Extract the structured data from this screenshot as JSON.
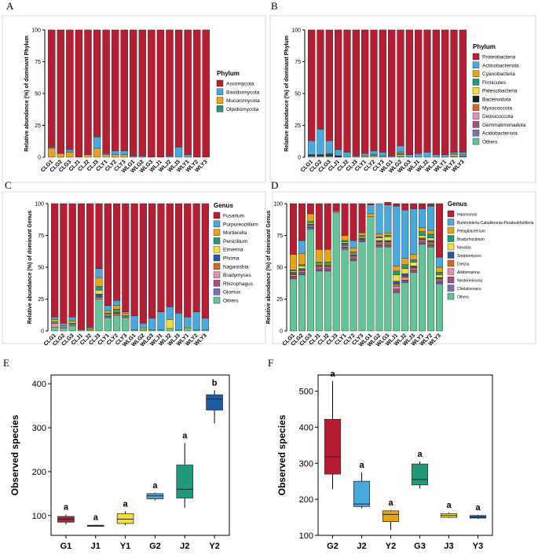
{
  "panels": [
    {
      "id": "A",
      "label": "A",
      "type": "stacked-bar",
      "ylabel": "Relative abundance (%) of dominant Phylum",
      "yticks": [
        "0",
        "25",
        "50",
        "75",
        "100"
      ],
      "legend_title": "Phylum",
      "categories": [
        "CLG1",
        "CLG2",
        "CLG3",
        "CLJ1",
        "CLJ2",
        "CLJ3",
        "CLY1",
        "CLY2",
        "CLY3",
        "WLG1",
        "WLG2",
        "WLG3",
        "WLJ1",
        "WLJ2",
        "WLJ3",
        "WLY1",
        "WLY2",
        "WLY3"
      ],
      "series": [
        {
          "name": "Olpidiomycota",
          "color": "#1f9a7a",
          "values": [
            0,
            0,
            0,
            0,
            0,
            0,
            0,
            0,
            0,
            0,
            0,
            0,
            0,
            0,
            0,
            0,
            0,
            0
          ]
        },
        {
          "name": "Mucoromycota",
          "color": "#e8a417",
          "values": [
            7,
            3,
            4,
            0,
            2,
            7,
            2,
            2,
            2,
            0,
            0,
            0,
            0,
            0,
            0,
            0,
            0,
            0
          ]
        },
        {
          "name": "Basidiomycota",
          "color": "#48a9df",
          "values": [
            1,
            0,
            2,
            0,
            0,
            9,
            1,
            3,
            3,
            1,
            1,
            0,
            0,
            1,
            8,
            2,
            0,
            0
          ]
        },
        {
          "name": "Ascomycota",
          "color": "#b71e33",
          "values": [
            92,
            97,
            94,
            100,
            98,
            84,
            97,
            95,
            95,
            99,
            99,
            100,
            100,
            99,
            92,
            98,
            100,
            100
          ]
        }
      ]
    },
    {
      "id": "B",
      "label": "B",
      "type": "stacked-bar",
      "ylabel": "Relative abundance (%) of dominant Phylum",
      "yticks": [
        "0",
        "25",
        "50",
        "75",
        "100"
      ],
      "legend_title": "Phylum",
      "categories": [
        "CLG1",
        "CLG2",
        "CLG3",
        "CLJ1",
        "CLJ2",
        "CLJ3",
        "CLY1",
        "CLY2",
        "CLY3",
        "WLG1",
        "WLG2",
        "WLG3",
        "WLJ1",
        "WLJ2",
        "WLJ3",
        "WLY1",
        "WLY2",
        "WLY3"
      ],
      "series": [
        {
          "name": "Others",
          "color": "#63c497",
          "values": [
            1,
            1,
            1,
            0,
            0,
            0,
            0,
            0,
            1,
            0,
            1,
            0,
            0,
            0,
            0,
            0,
            1,
            0
          ]
        },
        {
          "name": "Acidobacteriota",
          "color": "#7c6fb4",
          "values": [
            0,
            0,
            0,
            0,
            0,
            0,
            0,
            0,
            0,
            0,
            0,
            0,
            0,
            0,
            0,
            0,
            0,
            0
          ]
        },
        {
          "name": "Gemmatimonadota",
          "color": "#a8507f",
          "values": [
            0,
            0,
            0,
            0,
            0,
            0,
            0,
            0,
            0,
            0,
            0,
            0,
            0,
            0,
            0,
            0,
            0,
            0
          ]
        },
        {
          "name": "Deinococcota",
          "color": "#e490b0",
          "values": [
            0,
            0,
            0,
            0,
            0,
            0,
            0,
            0,
            0,
            0,
            0,
            0,
            0,
            0,
            0,
            0,
            0,
            0
          ]
        },
        {
          "name": "Myxococcota",
          "color": "#d9681e",
          "values": [
            0,
            0,
            0,
            0,
            0,
            0,
            0,
            0,
            0,
            0,
            0,
            0,
            0,
            0,
            0,
            0,
            0,
            0
          ]
        },
        {
          "name": "Bacteroidota",
          "color": "#1d1d1d",
          "values": [
            1,
            1,
            1,
            1,
            0,
            0,
            0,
            0,
            0,
            0,
            0,
            0,
            0,
            0,
            0,
            0,
            0,
            0
          ]
        },
        {
          "name": "Patescibacteria",
          "color": "#f3de3b",
          "values": [
            0,
            0,
            0,
            0,
            0,
            0,
            0,
            1,
            0,
            0,
            1,
            0,
            0,
            0,
            0,
            0,
            1,
            0
          ]
        },
        {
          "name": "Firmicutes",
          "color": "#1f9a7a",
          "values": [
            0,
            0,
            1,
            0,
            0,
            0,
            0,
            1,
            0,
            0,
            1,
            0,
            0,
            0,
            0,
            0,
            0,
            1
          ]
        },
        {
          "name": "Cyanobacteria",
          "color": "#e8a417",
          "values": [
            0,
            0,
            0,
            0,
            0,
            0,
            1,
            0,
            0,
            0,
            1,
            0,
            0,
            0,
            0,
            0,
            1,
            1
          ]
        },
        {
          "name": "Actinobacteriota",
          "color": "#48a9df",
          "values": [
            11,
            20,
            10,
            5,
            4,
            1,
            2,
            3,
            3,
            1,
            5,
            2,
            3,
            4,
            2,
            2,
            1,
            2
          ]
        },
        {
          "name": "Proteobacteria",
          "color": "#b71e33",
          "values": [
            87,
            78,
            87,
            94,
            96,
            99,
            97,
            95,
            96,
            99,
            91,
            98,
            97,
            96,
            98,
            98,
            96,
            96
          ]
        }
      ]
    },
    {
      "id": "C",
      "label": "C",
      "type": "stacked-bar",
      "ylabel": "Relative abundance (%) of dominant Genus",
      "yticks": [
        "0",
        "25",
        "50",
        "75",
        "100"
      ],
      "legend_title": "Genus",
      "categories": [
        "CLG1",
        "CLG2",
        "CLG3",
        "CLJ1",
        "CLJ2",
        "CLJ3",
        "CLY1",
        "CLY2",
        "CLY3",
        "WLG1",
        "WLG2",
        "WLG3",
        "WLJ1",
        "WLJ2",
        "WLJ3",
        "WLY1",
        "WLY2",
        "WLY3"
      ],
      "series": [
        {
          "name": "Others",
          "color": "#63c497",
          "values": [
            3,
            2,
            4,
            1,
            1,
            25,
            10,
            12,
            10,
            1,
            1,
            1,
            1,
            2,
            1,
            2,
            1,
            1
          ]
        },
        {
          "name": "Glomus",
          "color": "#7c6fb4",
          "values": [
            0,
            0,
            0,
            0,
            0,
            0,
            0,
            0,
            0,
            0,
            0,
            0,
            0,
            0,
            0,
            0,
            0,
            0
          ]
        },
        {
          "name": "Rhizophagus",
          "color": "#a8507f",
          "values": [
            0,
            0,
            0,
            0,
            0,
            0,
            0,
            0,
            0,
            0,
            0,
            0,
            0,
            0,
            0,
            0,
            0,
            0
          ]
        },
        {
          "name": "Bradymyces",
          "color": "#e490b0",
          "values": [
            3,
            1,
            1,
            0,
            0,
            1,
            1,
            1,
            1,
            0,
            0,
            0,
            0,
            0,
            0,
            0,
            0,
            0
          ]
        },
        {
          "name": "Naganishia",
          "color": "#d9681e",
          "values": [
            0,
            0,
            0,
            0,
            0,
            1,
            0,
            1,
            0,
            0,
            0,
            0,
            0,
            0,
            0,
            0,
            0,
            0
          ]
        },
        {
          "name": "Phoma",
          "color": "#1f5ca8",
          "values": [
            0,
            0,
            0,
            0,
            0,
            2,
            1,
            1,
            0,
            0,
            0,
            0,
            0,
            0,
            0,
            0,
            0,
            0
          ]
        },
        {
          "name": "Elmerina",
          "color": "#f3de3b",
          "values": [
            0,
            0,
            0,
            0,
            0,
            3,
            1,
            1,
            0,
            0,
            1,
            0,
            0,
            7,
            0,
            1,
            0,
            0
          ]
        },
        {
          "name": "Penicillium",
          "color": "#1f9a7a",
          "values": [
            1,
            0,
            1,
            0,
            0,
            3,
            1,
            1,
            1,
            0,
            0,
            0,
            0,
            0,
            0,
            0,
            0,
            0
          ]
        },
        {
          "name": "Mortierella",
          "color": "#e8a417",
          "values": [
            2,
            1,
            2,
            0,
            1,
            7,
            2,
            3,
            2,
            0,
            0,
            0,
            0,
            0,
            0,
            0,
            0,
            0
          ]
        },
        {
          "name": "Purpureocillium",
          "color": "#48a9df",
          "values": [
            2,
            2,
            3,
            0,
            1,
            7,
            4,
            4,
            1,
            11,
            4,
            9,
            14,
            10,
            13,
            8,
            14,
            9
          ]
        },
        {
          "name": "Fusarium",
          "color": "#b71e33",
          "values": [
            89,
            94,
            89,
            99,
            97,
            51,
            80,
            76,
            85,
            88,
            94,
            90,
            85,
            81,
            86,
            89,
            85,
            90
          ]
        }
      ]
    },
    {
      "id": "D",
      "label": "D",
      "type": "stacked-bar",
      "ylabel": "Relative abundance (%) of dominant Genus",
      "yticks": [
        "0",
        "25",
        "50",
        "75",
        "100"
      ],
      "legend_title": "Genus",
      "categories": [
        "CLG1",
        "CLG2",
        "CLG3",
        "CLJ1",
        "CLJ2",
        "CLJ3",
        "CLY1",
        "CLY2",
        "CLY3",
        "WLG1",
        "WLG2",
        "WLG3",
        "WLJ1",
        "WLJ2",
        "WLJ3",
        "WLY1",
        "WLY2",
        "WLY3"
      ],
      "series": [
        {
          "name": "Others",
          "color": "#63c497",
          "values": [
            41,
            44,
            80,
            47,
            47,
            93,
            64,
            55,
            70,
            90,
            66,
            66,
            30,
            38,
            46,
            68,
            66,
            37
          ]
        },
        {
          "name": "Chelativorans",
          "color": "#7c6fb4",
          "values": [
            1,
            1,
            1,
            1,
            1,
            0,
            1,
            1,
            1,
            0,
            1,
            1,
            1,
            1,
            1,
            1,
            1,
            1
          ]
        },
        {
          "name": "Nesterenkonia",
          "color": "#a8507f",
          "values": [
            1,
            1,
            1,
            1,
            1,
            0,
            1,
            1,
            1,
            0,
            1,
            1,
            2,
            1,
            1,
            1,
            1,
            1
          ]
        },
        {
          "name": "Aliidiomarina",
          "color": "#e490b0",
          "values": [
            1,
            1,
            1,
            1,
            1,
            0,
            1,
            1,
            0,
            0,
            1,
            1,
            2,
            2,
            1,
            1,
            1,
            1
          ]
        },
        {
          "name": "Dietzia",
          "color": "#d9681e",
          "values": [
            1,
            1,
            0,
            1,
            1,
            0,
            1,
            1,
            0,
            0,
            1,
            1,
            2,
            1,
            1,
            1,
            1,
            1
          ]
        },
        {
          "name": "Streptomyces",
          "color": "#1f5ca8",
          "values": [
            1,
            1,
            1,
            1,
            1,
            0,
            1,
            1,
            1,
            0,
            1,
            1,
            2,
            2,
            1,
            1,
            1,
            1
          ]
        },
        {
          "name": "Nevskia",
          "color": "#f3de3b",
          "values": [
            1,
            2,
            1,
            1,
            1,
            0,
            1,
            1,
            1,
            0,
            2,
            3,
            5,
            4,
            3,
            2,
            2,
            2
          ]
        },
        {
          "name": "Bradyrhizobium",
          "color": "#1f9a7a",
          "values": [
            1,
            1,
            1,
            1,
            1,
            0,
            1,
            1,
            1,
            0,
            1,
            1,
            3,
            3,
            2,
            3,
            3,
            2
          ]
        },
        {
          "name": "Pelagibacterium",
          "color": "#e8a417",
          "values": [
            12,
            9,
            6,
            10,
            10,
            1,
            4,
            3,
            2,
            2,
            2,
            2,
            4,
            5,
            4,
            3,
            3,
            4
          ]
        },
        {
          "name": "Burkholderia-Caballeronia-Paraburkholderia",
          "color": "#48a9df",
          "values": [
            0,
            10,
            0,
            0,
            0,
            0,
            0,
            6,
            0,
            7,
            24,
            22,
            47,
            38,
            36,
            15,
            19,
            8
          ]
        },
        {
          "name": "Halomonas",
          "color": "#b71e33",
          "values": [
            40,
            29,
            8,
            36,
            36,
            6,
            25,
            29,
            23,
            1,
            0,
            2,
            2,
            5,
            4,
            4,
            2,
            42
          ]
        }
      ]
    }
  ],
  "boxplots": [
    {
      "id": "E",
      "label": "E",
      "type": "box",
      "ylabel": "Observed species",
      "yticks": [
        "100",
        "200",
        "300",
        "400"
      ],
      "ylim": [
        55,
        420
      ],
      "groups": [
        {
          "name": "G1",
          "color": "#b71e33",
          "min": 80,
          "q1": 85,
          "median": 92,
          "q3": 98,
          "max": 102,
          "sig": "a"
        },
        {
          "name": "J1",
          "color": "#48a9df",
          "min": 75,
          "q1": 76,
          "median": 77,
          "q3": 78,
          "max": 79,
          "sig": "a"
        },
        {
          "name": "Y1",
          "color": "#f3de3b",
          "min": 78,
          "q1": 82,
          "median": 92,
          "q3": 104,
          "max": 110,
          "sig": "a"
        },
        {
          "name": "G2",
          "color": "#48a9df",
          "min": 135,
          "q1": 138,
          "median": 145,
          "q3": 150,
          "max": 152,
          "sig": "a"
        },
        {
          "name": "J2",
          "color": "#1f9a7a",
          "min": 118,
          "q1": 140,
          "median": 160,
          "q3": 215,
          "max": 265,
          "sig": "a"
        },
        {
          "name": "Y2",
          "color": "#1f5ca8",
          "min": 310,
          "q1": 340,
          "median": 365,
          "q3": 375,
          "max": 385,
          "sig": "b"
        }
      ]
    },
    {
      "id": "F",
      "label": "F",
      "type": "box",
      "ylabel": "Observed species",
      "yticks": [
        "100",
        "200",
        "300",
        "400",
        "500"
      ],
      "ylim": [
        100,
        545
      ],
      "groups": [
        {
          "name": "G2",
          "color": "#b71e33",
          "min": 228,
          "q1": 270,
          "median": 318,
          "q3": 422,
          "max": 528,
          "sig": "a"
        },
        {
          "name": "J2",
          "color": "#48a9df",
          "min": 175,
          "q1": 180,
          "median": 187,
          "q3": 250,
          "max": 275,
          "sig": "a"
        },
        {
          "name": "Y2",
          "color": "#e8a417",
          "min": 115,
          "q1": 138,
          "median": 158,
          "q3": 168,
          "max": 170,
          "sig": "a"
        },
        {
          "name": "G3",
          "color": "#1f9a7a",
          "min": 230,
          "q1": 240,
          "median": 255,
          "q3": 298,
          "max": 305,
          "sig": "a"
        },
        {
          "name": "J3",
          "color": "#f3de3b",
          "min": 148,
          "q1": 150,
          "median": 155,
          "q3": 160,
          "max": 163,
          "sig": "a"
        },
        {
          "name": "Y3",
          "color": "#1f5ca8",
          "min": 146,
          "q1": 148,
          "median": 150,
          "q3": 155,
          "max": 157,
          "sig": "a"
        }
      ]
    }
  ]
}
